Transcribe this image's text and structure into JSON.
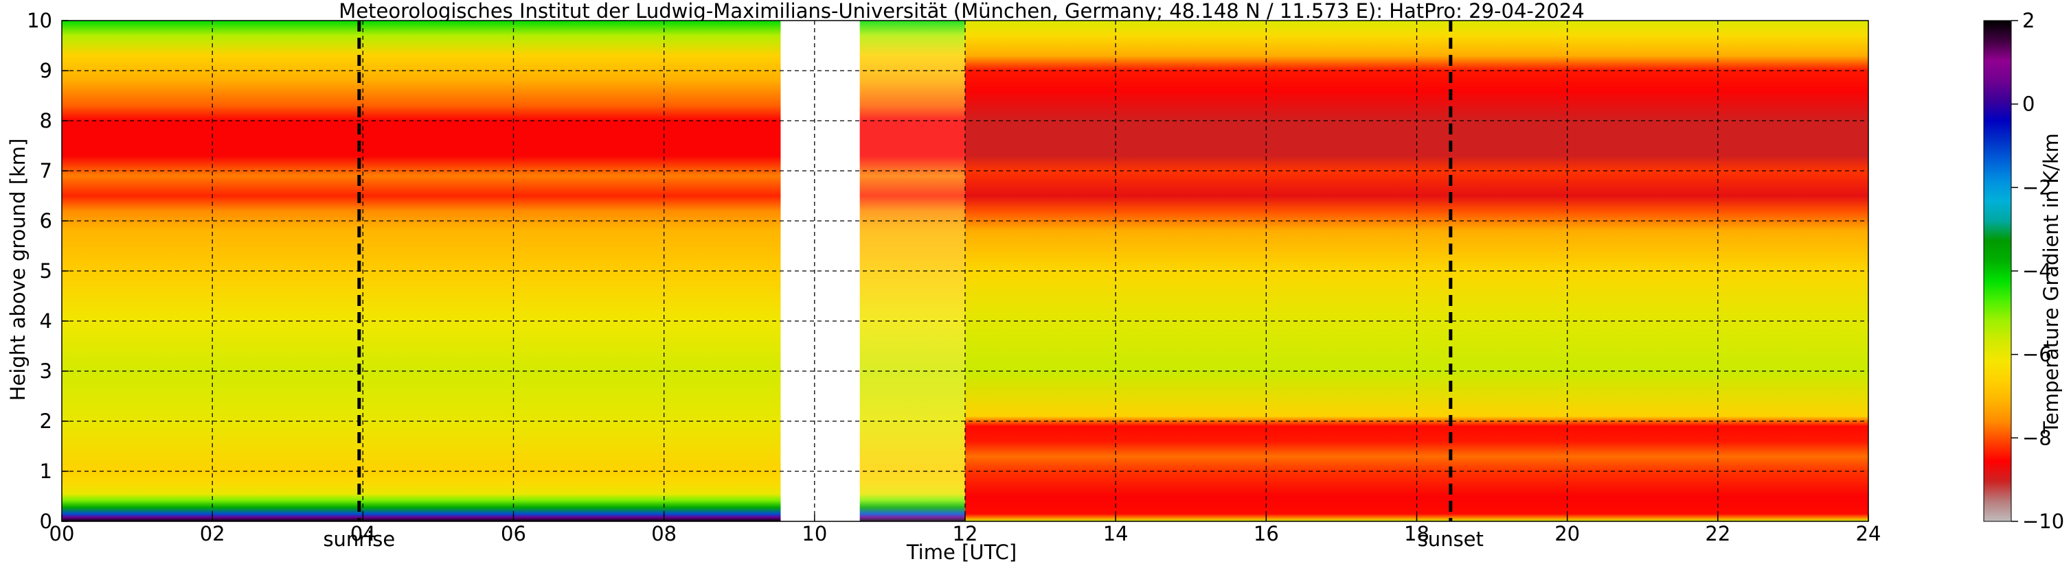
{
  "chart_data": {
    "type": "heatmap",
    "title": "Meteorologisches Institut der Ludwig-Maximilians-Universität (München, Germany; 48.148 N / 11.573 E):    HatPro: 29-04-2024",
    "xlabel": "Time [UTC]",
    "ylabel": "Height above ground [km]",
    "x_ticks": [
      "00",
      "02",
      "04",
      "06",
      "08",
      "10",
      "12",
      "14",
      "16",
      "18",
      "20",
      "22",
      "24"
    ],
    "y_ticks": [
      "0",
      "1",
      "2",
      "3",
      "4",
      "5",
      "6",
      "7",
      "8",
      "9",
      "10"
    ],
    "xlim": [
      0,
      24
    ],
    "ylim": [
      0,
      10
    ],
    "grid": true,
    "markers": [
      {
        "label": "sunrise",
        "time": 3.95
      },
      {
        "label": "sunset",
        "time": 18.45
      }
    ],
    "data_gap": [
      9.55,
      10.6
    ],
    "colorbar": {
      "label": "Temperature Gradient in K/km",
      "ticks": [
        "2",
        "0",
        "−2",
        "−4",
        "−6",
        "−8",
        "−10"
      ],
      "range": [
        -10,
        2
      ],
      "colors": [
        "#c0bcbc",
        "#b87c7c",
        "#cc2222",
        "#ff0000",
        "#ff4500",
        "#ff8c00",
        "#ffb400",
        "#ffd000",
        "#f5e600",
        "#d2ea00",
        "#9ff000",
        "#4cf000",
        "#00e000",
        "#00b000",
        "#009a00",
        "#00a8a0",
        "#00b0d8",
        "#0090e0",
        "#0060d8",
        "#0030c8",
        "#0000c0",
        "#3a0098",
        "#700090",
        "#900090",
        "#400040",
        "#000000"
      ]
    },
    "profile_day": [
      {
        "h": 0.0,
        "v": 2.0
      },
      {
        "h": 0.08,
        "v": 0.5
      },
      {
        "h": 0.15,
        "v": -1.2
      },
      {
        "h": 0.28,
        "v": -3.6
      },
      {
        "h": 0.42,
        "v": -5.0
      },
      {
        "h": 0.55,
        "v": -6.0
      },
      {
        "h": 0.75,
        "v": -6.4
      },
      {
        "h": 1.0,
        "v": -6.6
      },
      {
        "h": 2.0,
        "v": -6.0
      },
      {
        "h": 3.0,
        "v": -5.7
      },
      {
        "h": 4.0,
        "v": -6.1
      },
      {
        "h": 5.0,
        "v": -6.7
      },
      {
        "h": 5.8,
        "v": -7.1
      },
      {
        "h": 6.2,
        "v": -7.6
      },
      {
        "h": 6.5,
        "v": -8.3
      },
      {
        "h": 6.9,
        "v": -7.7
      },
      {
        "h": 7.3,
        "v": -8.6
      },
      {
        "h": 8.0,
        "v": -8.6
      },
      {
        "h": 8.3,
        "v": -7.9
      },
      {
        "h": 8.8,
        "v": -7.2
      },
      {
        "h": 9.3,
        "v": -6.6
      },
      {
        "h": 9.7,
        "v": -5.4
      },
      {
        "h": 10.0,
        "v": -4.2
      }
    ],
    "profile_night": [
      {
        "h": 0.0,
        "v": -5.5
      },
      {
        "h": 0.06,
        "v": -7.5
      },
      {
        "h": 0.15,
        "v": -8.5
      },
      {
        "h": 0.5,
        "v": -8.6
      },
      {
        "h": 1.0,
        "v": -8.2
      },
      {
        "h": 1.3,
        "v": -7.8
      },
      {
        "h": 1.6,
        "v": -8.4
      },
      {
        "h": 1.9,
        "v": -8.5
      },
      {
        "h": 2.1,
        "v": -6.6
      },
      {
        "h": 3.0,
        "v": -5.6
      },
      {
        "h": 4.0,
        "v": -5.9
      },
      {
        "h": 5.0,
        "v": -6.5
      },
      {
        "h": 5.8,
        "v": -7.2
      },
      {
        "h": 6.2,
        "v": -8.0
      },
      {
        "h": 6.5,
        "v": -8.8
      },
      {
        "h": 7.0,
        "v": -8.2
      },
      {
        "h": 7.3,
        "v": -9.0
      },
      {
        "h": 8.0,
        "v": -9.0
      },
      {
        "h": 8.6,
        "v": -8.6
      },
      {
        "h": 9.0,
        "v": -8.4
      },
      {
        "h": 9.3,
        "v": -7.2
      },
      {
        "h": 9.7,
        "v": -6.4
      },
      {
        "h": 10.0,
        "v": -5.8
      }
    ]
  }
}
